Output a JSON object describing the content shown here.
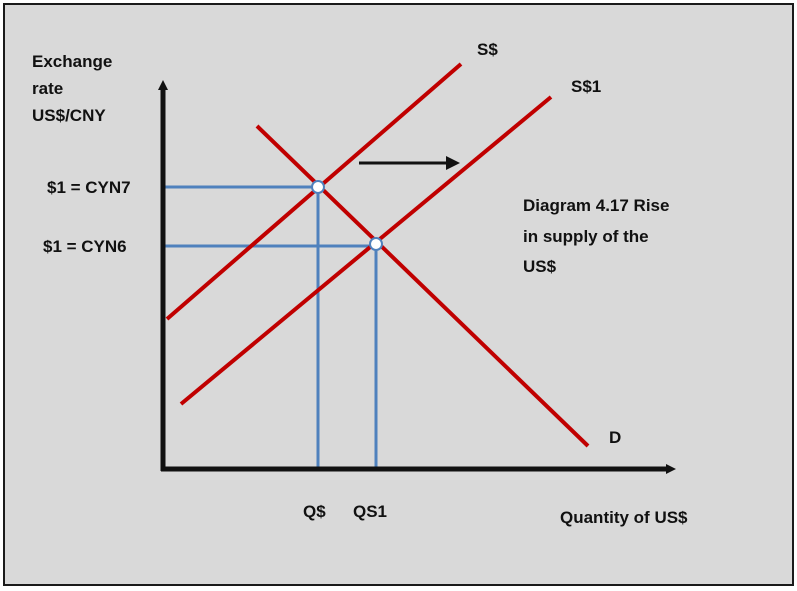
{
  "diagram": {
    "y_axis_label": [
      "Exchange",
      "rate",
      "US$/CNY"
    ],
    "x_axis_label": "Quantity of US$",
    "price_labels": {
      "p1": "$1 = CYN7",
      "p2": "$1 = CYN6"
    },
    "quantity_labels": {
      "q1": "Q$",
      "q2": "QS1"
    },
    "curve_labels": {
      "supply": "S$",
      "supply_new": "S$1",
      "demand": "D"
    },
    "caption": [
      "Diagram 4.17 Rise",
      "in supply of the",
      "US$"
    ],
    "colors": {
      "curves": "#c00000",
      "guides": "#4f81bd",
      "axes": "#111111",
      "background": "#d9d9d9"
    }
  }
}
